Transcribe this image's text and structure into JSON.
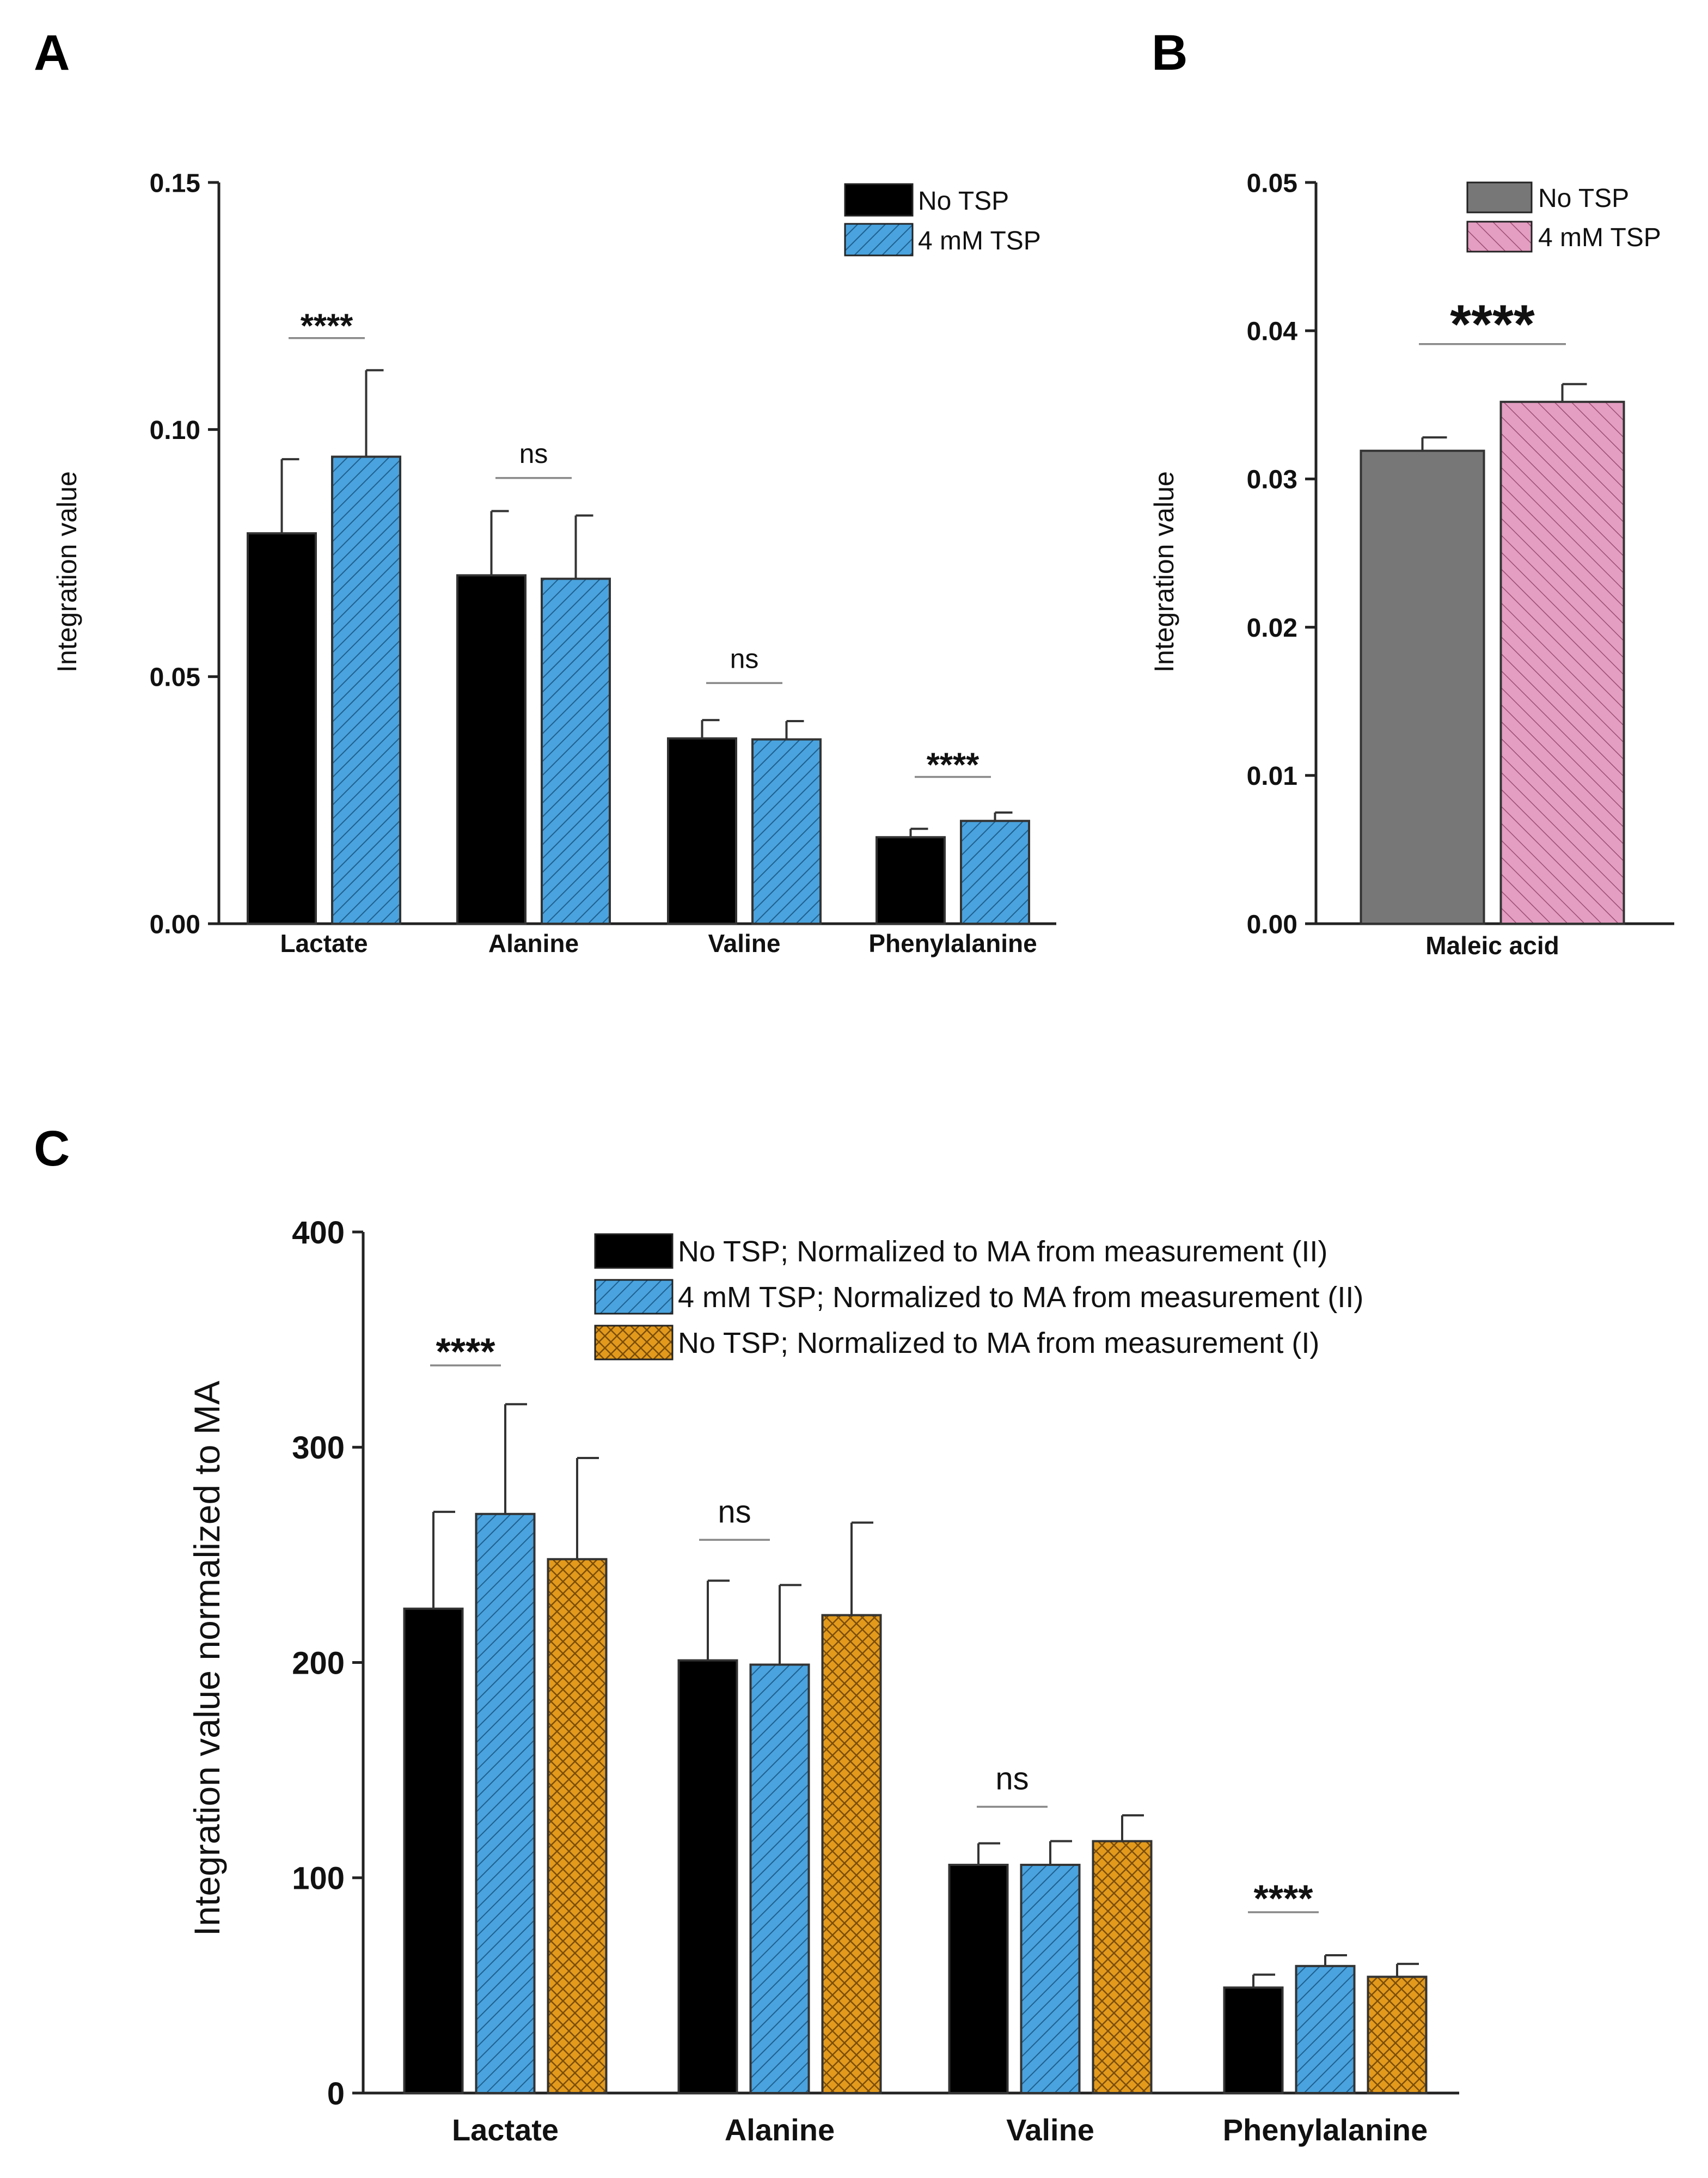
{
  "colors": {
    "black": "#000000",
    "blue": "#4aa3de",
    "gray": "#777777",
    "pink": "#e39ec1",
    "orange": "#e39a1c",
    "axis": "#222222"
  },
  "chart_data": [
    {
      "panel": "A",
      "type": "bar",
      "title": "",
      "xlabel": "",
      "ylabel": "Integration value",
      "ylim": [
        0,
        0.15
      ],
      "yticks": [
        "0.00",
        "0.05",
        "0.10",
        "0.15"
      ],
      "ytick_values": [
        0,
        0.05,
        0.1,
        0.15
      ],
      "categories": [
        "Lactate",
        "Alanine",
        "Valine",
        "Phenylalanine"
      ],
      "legend_position": "top-right",
      "series": [
        {
          "name": "No TSP",
          "color": "#000000",
          "pattern": "solid",
          "values": [
            0.079,
            0.0705,
            0.0375,
            0.0175
          ],
          "errors": [
            0.015,
            0.013,
            0.0037,
            0.0017
          ]
        },
        {
          "name": "4 mM TSP",
          "color": "#4aa3de",
          "pattern": "hatch",
          "values": [
            0.0945,
            0.0698,
            0.0373,
            0.0208
          ],
          "errors": [
            0.0175,
            0.0128,
            0.0037,
            0.0017
          ]
        }
      ],
      "significance": [
        {
          "category": "Lactate",
          "label": "****",
          "y": 0.1185
        },
        {
          "category": "Alanine",
          "label": "ns",
          "y": 0.0902
        },
        {
          "category": "Valine",
          "label": "ns",
          "y": 0.0487
        },
        {
          "category": "Phenylalanine",
          "label": "****",
          "y": 0.0297
        }
      ]
    },
    {
      "panel": "B",
      "type": "bar",
      "title": "",
      "xlabel": "",
      "ylabel": "Integration value",
      "ylim": [
        0,
        0.05
      ],
      "yticks": [
        "0.00",
        "0.01",
        "0.02",
        "0.03",
        "0.04",
        "0.05"
      ],
      "ytick_values": [
        0,
        0.01,
        0.02,
        0.03,
        0.04,
        0.05
      ],
      "categories": [
        "Maleic acid"
      ],
      "legend_position": "top-right",
      "series": [
        {
          "name": "No TSP",
          "color": "#777777",
          "pattern": "solid",
          "values": [
            0.0319
          ],
          "errors": [
            0.0009
          ]
        },
        {
          "name": "4 mM TSP",
          "color": "#e39ec1",
          "pattern": "hatch",
          "values": [
            0.0352
          ],
          "errors": [
            0.0012
          ]
        }
      ],
      "significance": [
        {
          "category": "Maleic acid",
          "label": "****",
          "y": 0.0391
        }
      ]
    },
    {
      "panel": "C",
      "type": "bar",
      "title": "",
      "xlabel": "",
      "ylabel": "Integration value normalized to MA",
      "ylim": [
        0,
        400
      ],
      "yticks": [
        "0",
        "100",
        "200",
        "300",
        "400"
      ],
      "ytick_values": [
        0,
        100,
        200,
        300,
        400
      ],
      "categories": [
        "Lactate",
        "Alanine",
        "Valine",
        "Phenylalanine"
      ],
      "legend_position": "top-right",
      "series": [
        {
          "name": "No TSP; Normalized to MA from measurement (II)",
          "color": "#000000",
          "pattern": "solid",
          "values": [
            225,
            201,
            106,
            49
          ],
          "errors": [
            45,
            37,
            10,
            6
          ]
        },
        {
          "name": "4 mM TSP; Normalized to MA from measurement (II)",
          "color": "#4aa3de",
          "pattern": "hatch",
          "values": [
            269,
            199,
            106,
            59
          ],
          "errors": [
            51,
            37,
            11,
            5
          ]
        },
        {
          "name": "No TSP; Normalized to MA from measurement (I)",
          "color": "#e39a1c",
          "pattern": "crosshatch",
          "values": [
            248,
            222,
            117,
            54
          ],
          "errors": [
            47,
            43,
            12,
            6
          ]
        }
      ],
      "significance": [
        {
          "category": "Lactate",
          "label": "****",
          "y": 338
        },
        {
          "category": "Alanine",
          "label": "ns",
          "y": 257
        },
        {
          "category": "Valine",
          "label": "ns",
          "y": 133
        },
        {
          "category": "Phenylalanine",
          "label": "****",
          "y": 84
        }
      ]
    }
  ],
  "panel_labels": [
    "A",
    "B",
    "C"
  ]
}
